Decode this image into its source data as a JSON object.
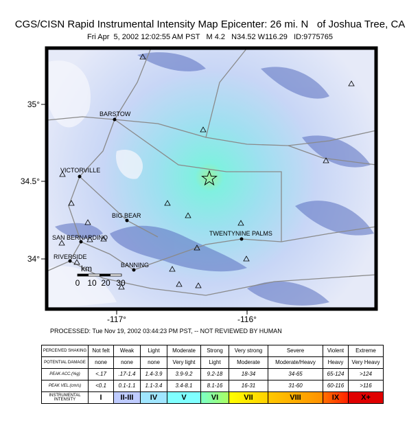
{
  "header": {
    "title": "CGS/CISN Rapid Instrumental Intensity Map Epicenter: 26 mi. N   of Joshua Tree, CA",
    "subtitle": "Fri Apr  5, 2002 12:02:55 AM PST   M 4.2   N34.52 W116.29   ID:9775765"
  },
  "map": {
    "lat_ticks": [
      "35°",
      "34.5°",
      "34°"
    ],
    "lon_ticks": [
      "-117°",
      "-116°"
    ],
    "cities": [
      "BARSTOW",
      "VICTORVILLE",
      "BIG BEAR",
      "SAN BERNARDINO",
      "RIVERSIDE",
      "BANNING",
      "TWENTYNINE PALMS"
    ],
    "scale": {
      "unit": "km",
      "ticks": [
        "0",
        "10",
        "20",
        "30"
      ]
    }
  },
  "footer": {
    "processed": "PROCESSED: Tue Nov 19, 2002 03:44:23 PM PST, -- NOT REVIEWED BY HUMAN"
  },
  "legend": {
    "rows": [
      {
        "label": "PERCEIVED SHAKING",
        "cells": [
          "Not felt",
          "Weak",
          "Light",
          "Moderate",
          "Strong",
          "Very strong",
          "Severe",
          "Violent",
          "Extreme"
        ]
      },
      {
        "label": "POTENTIAL DAMAGE",
        "cells": [
          "none",
          "none",
          "none",
          "Very light",
          "Light",
          "Moderate",
          "Moderate/Heavy",
          "Heavy",
          "Very Heavy"
        ]
      },
      {
        "label": "PEAK ACC.(%g)",
        "cells": [
          "<.17",
          ".17-1.4",
          "1.4-3.9",
          "3.9-9.2",
          "9.2-18",
          "18-34",
          "34-65",
          "65-124",
          ">124"
        ]
      },
      {
        "label": "PEAK VEL.(cm/s)",
        "cells": [
          "<0.1",
          "0.1-1.1",
          "1.1-3.4",
          "3.4-8.1",
          "8.1-16",
          "16-31",
          "31-60",
          "60-116",
          ">116"
        ]
      },
      {
        "label": "INSTRUMENTAL INTENSITY",
        "cells": [
          "I",
          "II-III",
          "IV",
          "V",
          "VI",
          "VII",
          "VIII",
          "IX",
          "X+"
        ]
      }
    ]
  }
}
